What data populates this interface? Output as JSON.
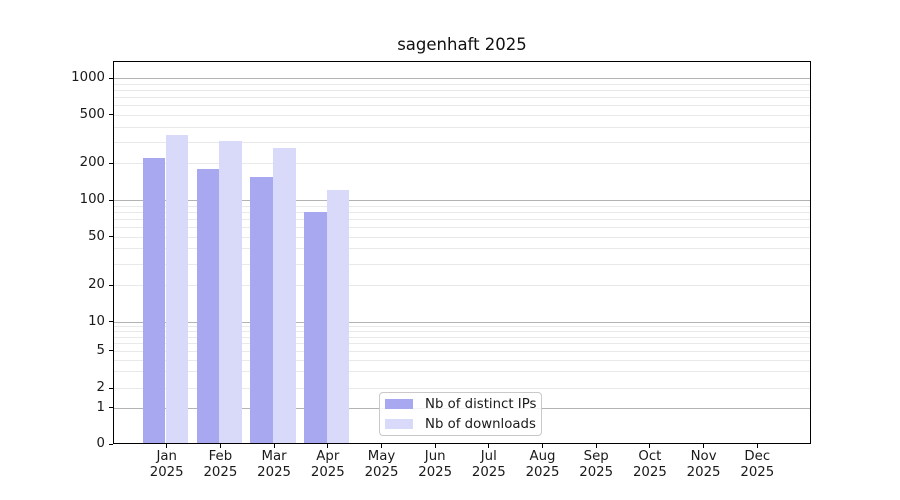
{
  "title": "sagenhaft 2025",
  "chart_data": {
    "type": "bar",
    "title": "sagenhaft 2025",
    "categories": [
      "Jan 2025",
      "Feb 2025",
      "Mar 2025",
      "Apr 2025",
      "May 2025",
      "Jun 2025",
      "Jul 2025",
      "Aug 2025",
      "Sep 2025",
      "Oct 2025",
      "Nov 2025",
      "Dec 2025"
    ],
    "series": [
      {
        "name": "Nb of distinct IPs",
        "color": "#a8a8f1",
        "values": [
          220,
          180,
          155,
          80,
          0,
          0,
          0,
          0,
          0,
          0,
          0,
          0
        ]
      },
      {
        "name": "Nb of downloads",
        "color": "#d9d9f9",
        "values": [
          340,
          305,
          270,
          120,
          0,
          0,
          0,
          0,
          0,
          0,
          0,
          0
        ]
      }
    ],
    "yscale": "symlog",
    "yticks": [
      1000,
      500,
      200,
      100,
      50,
      20,
      10,
      5,
      2,
      1,
      0
    ],
    "ylim": [
      0,
      1390
    ],
    "xlabel": "",
    "ylabel": "",
    "grid": true,
    "legend_position": "bottom-center",
    "style": {
      "major_grid_color": "#b3b3b3",
      "minor_grid_color": "#e9e9e9",
      "spine_color": "#000000",
      "background": "#ffffff"
    }
  },
  "legend": {
    "items": [
      {
        "label": "Nb of distinct IPs",
        "color": "#a8a8f1"
      },
      {
        "label": "Nb of downloads",
        "color": "#d9d9f9"
      }
    ]
  }
}
